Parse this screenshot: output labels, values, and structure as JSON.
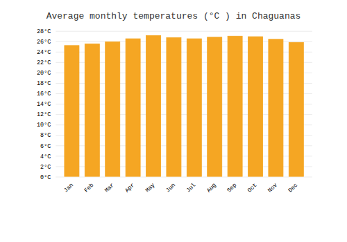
{
  "chart_data": {
    "type": "bar",
    "title": "Average monthly temperatures (°C ) in Chaguanas",
    "categories": [
      "Jan",
      "Feb",
      "Mar",
      "Apr",
      "May",
      "Jun",
      "Jul",
      "Aug",
      "Sep",
      "Oct",
      "Nov",
      "Dec"
    ],
    "values": [
      25.2,
      25.5,
      25.9,
      26.5,
      27.1,
      26.7,
      26.5,
      26.8,
      27.0,
      26.9,
      26.4,
      25.8
    ],
    "color": "#F5A623",
    "ylim": [
      0,
      28
    ],
    "yticks": [
      {
        "value": 0,
        "label": "0°C"
      },
      {
        "value": 2,
        "label": "2°C"
      },
      {
        "value": 4,
        "label": "4°C"
      },
      {
        "value": 6,
        "label": "6°C"
      },
      {
        "value": 8,
        "label": "8°C"
      },
      {
        "value": 10,
        "label": "10°C"
      },
      {
        "value": 12,
        "label": "12°C"
      },
      {
        "value": 14,
        "label": "14°C"
      },
      {
        "value": 16,
        "label": "16°C"
      },
      {
        "value": 18,
        "label": "18°C"
      },
      {
        "value": 20,
        "label": "20°C"
      },
      {
        "value": 22,
        "label": "22°C"
      },
      {
        "value": 24,
        "label": "24°C"
      },
      {
        "value": 26,
        "label": "26°C"
      },
      {
        "value": 28,
        "label": "28°C"
      }
    ],
    "grid": true
  }
}
